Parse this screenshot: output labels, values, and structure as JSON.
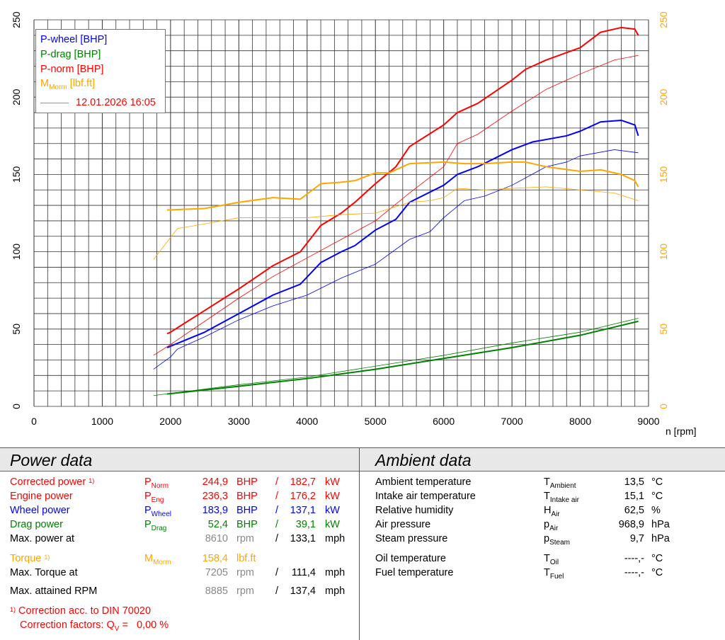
{
  "chart_data": {
    "type": "line",
    "xlabel": "n [rpm]",
    "xlim": [
      0,
      9000
    ],
    "ylim": [
      0,
      250
    ],
    "y2lim": [
      0,
      250
    ],
    "xticks": [
      "0",
      "1000",
      "2000",
      "3000",
      "4000",
      "5000",
      "6000",
      "7000",
      "8000",
      "9000"
    ],
    "yticks": [
      "0",
      "50",
      "100",
      "150",
      "200",
      "250"
    ],
    "y2ticks": [
      "0",
      "50",
      "100",
      "150",
      "200",
      "250"
    ],
    "grid": true,
    "legend_position": "top-left",
    "legend": {
      "wheel": "P-wheel [BHP]",
      "drag": "P-drag [BHP]",
      "norm": "P-norm [BHP]",
      "torque_main": "M",
      "torque_sub": "Morm",
      "torque_unit": " [lbf.ft]",
      "ref": "12.01.2026 16:05"
    },
    "series": [
      {
        "name": "P-norm",
        "color": "#ff0000",
        "width": 2,
        "points": [
          [
            1950,
            47
          ],
          [
            2000,
            48
          ],
          [
            2500,
            62
          ],
          [
            3000,
            76
          ],
          [
            3500,
            91
          ],
          [
            3900,
            100
          ],
          [
            4200,
            117
          ],
          [
            4500,
            125
          ],
          [
            4700,
            132
          ],
          [
            5000,
            144
          ],
          [
            5300,
            155
          ],
          [
            5500,
            168
          ],
          [
            6000,
            182
          ],
          [
            6200,
            190
          ],
          [
            6500,
            196
          ],
          [
            7000,
            211
          ],
          [
            7200,
            218
          ],
          [
            7500,
            224
          ],
          [
            8000,
            232
          ],
          [
            8300,
            242
          ],
          [
            8600,
            245
          ],
          [
            8800,
            244
          ],
          [
            8850,
            240
          ]
        ]
      },
      {
        "name": "P-norm ref",
        "color": "#ff0000",
        "width": 0.8,
        "points": [
          [
            1750,
            33
          ],
          [
            2000,
            40
          ],
          [
            2500,
            55
          ],
          [
            3000,
            70
          ],
          [
            3500,
            84
          ],
          [
            4000,
            96
          ],
          [
            4500,
            108
          ],
          [
            5000,
            120
          ],
          [
            5500,
            138
          ],
          [
            6000,
            155
          ],
          [
            6200,
            170
          ],
          [
            6500,
            176
          ],
          [
            7000,
            191
          ],
          [
            7500,
            205
          ],
          [
            8000,
            215
          ],
          [
            8500,
            224
          ],
          [
            8850,
            227
          ]
        ]
      },
      {
        "name": "P-wheel",
        "color": "#0000ff",
        "width": 2,
        "points": [
          [
            1950,
            38
          ],
          [
            2500,
            48
          ],
          [
            3000,
            60
          ],
          [
            3500,
            72
          ],
          [
            3900,
            79
          ],
          [
            4200,
            93
          ],
          [
            4500,
            100
          ],
          [
            4700,
            104
          ],
          [
            5000,
            114
          ],
          [
            5300,
            121
          ],
          [
            5500,
            132
          ],
          [
            6000,
            143
          ],
          [
            6200,
            150
          ],
          [
            6500,
            155
          ],
          [
            7000,
            166
          ],
          [
            7300,
            171
          ],
          [
            7800,
            175
          ],
          [
            8000,
            178
          ],
          [
            8300,
            184
          ],
          [
            8600,
            185
          ],
          [
            8800,
            182
          ],
          [
            8850,
            175
          ]
        ]
      },
      {
        "name": "P-wheel ref",
        "color": "#0000ff",
        "width": 0.8,
        "points": [
          [
            1750,
            24
          ],
          [
            2000,
            32
          ],
          [
            2100,
            37
          ],
          [
            2500,
            45
          ],
          [
            3000,
            56
          ],
          [
            3500,
            65
          ],
          [
            4000,
            72
          ],
          [
            4500,
            83
          ],
          [
            5000,
            92
          ],
          [
            5500,
            108
          ],
          [
            5800,
            113
          ],
          [
            6000,
            122
          ],
          [
            6300,
            133
          ],
          [
            6600,
            136
          ],
          [
            7000,
            143
          ],
          [
            7500,
            155
          ],
          [
            7800,
            158
          ],
          [
            8000,
            162
          ],
          [
            8500,
            166
          ],
          [
            8850,
            164
          ]
        ]
      },
      {
        "name": "M-Morm",
        "color": "#ffa500",
        "width": 2,
        "points": [
          [
            1950,
            127
          ],
          [
            2500,
            128
          ],
          [
            3000,
            132
          ],
          [
            3500,
            135
          ],
          [
            3900,
            134
          ],
          [
            4200,
            144
          ],
          [
            4500,
            145
          ],
          [
            4700,
            146
          ],
          [
            5000,
            151
          ],
          [
            5200,
            151
          ],
          [
            5500,
            157
          ],
          [
            6000,
            158
          ],
          [
            6300,
            157
          ],
          [
            6600,
            157
          ],
          [
            7000,
            158
          ],
          [
            7200,
            158
          ],
          [
            7500,
            155
          ],
          [
            8000,
            152
          ],
          [
            8300,
            153
          ],
          [
            8600,
            150
          ],
          [
            8800,
            146
          ],
          [
            8850,
            142
          ]
        ]
      },
      {
        "name": "M-Morm ref",
        "color": "#ffa500",
        "width": 0.8,
        "points": [
          [
            1750,
            95
          ],
          [
            2100,
            115
          ],
          [
            2500,
            118
          ],
          [
            3000,
            122
          ],
          [
            3500,
            122
          ],
          [
            4000,
            122
          ],
          [
            4500,
            124
          ],
          [
            5000,
            125
          ],
          [
            5500,
            132
          ],
          [
            5800,
            133
          ],
          [
            6000,
            135
          ],
          [
            6200,
            141
          ],
          [
            6600,
            140
          ],
          [
            7000,
            141
          ],
          [
            7500,
            142
          ],
          [
            8000,
            140
          ],
          [
            8500,
            138
          ],
          [
            8850,
            133
          ]
        ]
      },
      {
        "name": "P-drag",
        "color": "#008000",
        "width": 2,
        "points": [
          [
            1950,
            8
          ],
          [
            3000,
            13
          ],
          [
            4000,
            18
          ],
          [
            5000,
            24
          ],
          [
            6000,
            31
          ],
          [
            7000,
            38
          ],
          [
            8000,
            46
          ],
          [
            8850,
            55
          ]
        ]
      },
      {
        "name": "P-drag ref",
        "color": "#008000",
        "width": 0.8,
        "points": [
          [
            1750,
            7
          ],
          [
            3000,
            14
          ],
          [
            4000,
            19
          ],
          [
            5000,
            26
          ],
          [
            6000,
            33
          ],
          [
            7000,
            41
          ],
          [
            8000,
            48
          ],
          [
            8850,
            57
          ]
        ]
      }
    ]
  },
  "power": {
    "title": "Power data",
    "rows": [
      {
        "label": "Corrected power",
        "note": "1)",
        "sym": "P",
        "sub": "Norm",
        "v1": "244,9",
        "u1": "BHP",
        "sep": "/",
        "v2": "182,7",
        "u2": "kW",
        "color": "#ff0000"
      },
      {
        "label": "Engine power",
        "note": "",
        "sym": "P",
        "sub": "Eng",
        "v1": "236,3",
        "u1": "BHP",
        "sep": "/",
        "v2": "176,2",
        "u2": "kW",
        "color": "#ff0000"
      },
      {
        "label": "Wheel power",
        "note": "",
        "sym": "P",
        "sub": "Wheel",
        "v1": "183,9",
        "u1": "BHP",
        "sep": "/",
        "v2": "137,1",
        "u2": "kW",
        "color": "#0000ff"
      },
      {
        "label": "Drag power",
        "note": "",
        "sym": "P",
        "sub": "Drag",
        "v1": "52,4",
        "u1": "BHP",
        "sep": "/",
        "v2": "39,1",
        "u2": "kW",
        "color": "#008000"
      },
      {
        "label": "Max. power at",
        "note": "",
        "sym": "",
        "sub": "",
        "v1": "8610",
        "u1": "rpm",
        "sep": "/",
        "v2": "133,1",
        "u2": "mph",
        "color": "#000000"
      },
      {
        "label": "Torque",
        "note": "1)",
        "sym": "M",
        "sub": "Morm",
        "v1": "158,4",
        "u1": "lbf.ft",
        "sep": "",
        "v2": "",
        "u2": "",
        "color": "#ffa500"
      },
      {
        "label": "Max. Torque at",
        "note": "",
        "sym": "",
        "sub": "",
        "v1": "7205",
        "u1": "rpm",
        "sep": "/",
        "v2": "111,4",
        "u2": "mph",
        "color": "#000000"
      },
      {
        "label": "Max. attained RPM",
        "note": "",
        "sym": "",
        "sub": "",
        "v1": "8885",
        "u1": "rpm",
        "sep": "/",
        "v2": "137,4",
        "u2": "mph",
        "color": "#000000"
      }
    ],
    "footnote_mark": "1)",
    "footnote1": "Correction acc. to DIN 70020",
    "footnote2_pre": "Correction factors: Q",
    "footnote2_sub": "V",
    "footnote2_post": " =   0,00 %"
  },
  "ambient": {
    "title": "Ambient data",
    "rows": [
      {
        "label": "Ambient temperature",
        "sym": "T",
        "sub": "Ambient",
        "value": "13,5",
        "unit": "°C"
      },
      {
        "label": "Intake air temperature",
        "sym": "T",
        "sub": "Intake air",
        "value": "15,1",
        "unit": "°C"
      },
      {
        "label": "Relative humidity",
        "sym": "H",
        "sub": "Air",
        "value": "62,5",
        "unit": "%"
      },
      {
        "label": "Air pressure",
        "sym": "p",
        "sub": "Air",
        "value": "968,9",
        "unit": "hPa"
      },
      {
        "label": "Steam pressure",
        "sym": "p",
        "sub": "Steam",
        "value": "9,7",
        "unit": "hPa"
      },
      {
        "label": "Oil temperature",
        "sym": "T",
        "sub": "Oil",
        "value": "----,-",
        "unit": "°C"
      },
      {
        "label": "Fuel temperature",
        "sym": "T",
        "sub": "Fuel",
        "value": "----,-",
        "unit": "°C"
      }
    ]
  }
}
